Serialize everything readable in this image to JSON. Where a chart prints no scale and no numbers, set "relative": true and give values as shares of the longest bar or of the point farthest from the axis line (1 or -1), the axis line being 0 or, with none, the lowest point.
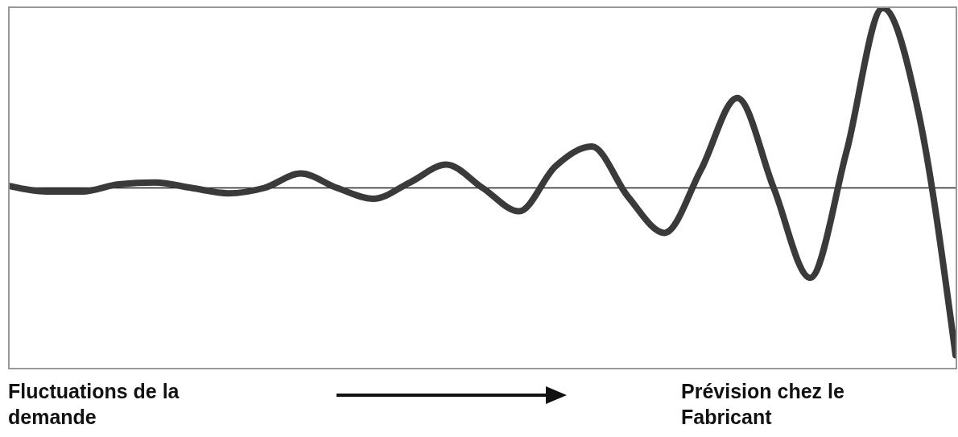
{
  "chart_data": {
    "type": "line",
    "relative": true,
    "categories": [
      null,
      null,
      null,
      null,
      null,
      null,
      null,
      null,
      null,
      null,
      null,
      null,
      null,
      null,
      null,
      null,
      null,
      null,
      null,
      null,
      null,
      null,
      null,
      null,
      null,
      null,
      null
    ],
    "series": [
      {
        "color": "#3a3a3a",
        "values": [
          0.01,
          -0.02,
          -0.02,
          0.02,
          0.03,
          0.0,
          -0.03,
          0.0,
          0.08,
          0.0,
          -0.06,
          0.03,
          0.13,
          0.0,
          -0.13,
          0.12,
          0.23,
          -0.05,
          -0.25,
          0.1,
          0.5,
          0.0,
          -0.5,
          0.2,
          1.0,
          0.4,
          -0.93
        ]
      }
    ],
    "marker": "none",
    "annotations": [
      "Fluctuations de la demande",
      "Prévision chez le Fabricant"
    ]
  }
}
